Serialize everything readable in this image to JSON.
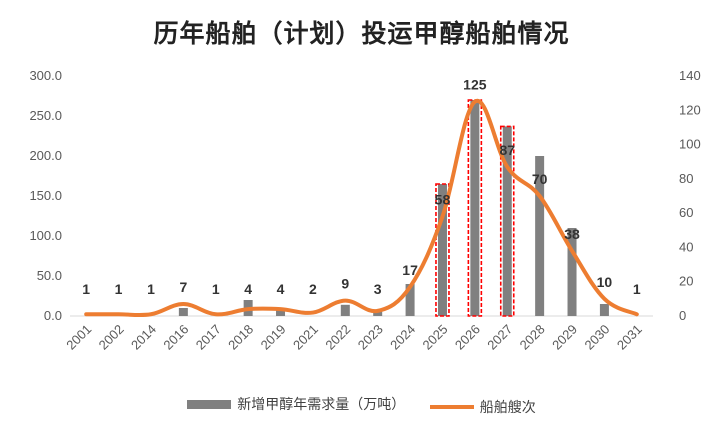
{
  "chart_data": {
    "type": "bar+line",
    "title": "历年船舶（计划）投运甲醇船舶情况",
    "categories": [
      "2001",
      "2002",
      "2014",
      "2016",
      "2017",
      "2018",
      "2019",
      "2021",
      "2022",
      "2023",
      "2024",
      "2025",
      "2026",
      "2027",
      "2028",
      "2029",
      "2030",
      "2031"
    ],
    "series": [
      {
        "name": "新增甲醇年需求量（万吨）",
        "type": "bar",
        "axis": "left",
        "color": "#808080",
        "values": [
          0,
          0,
          0,
          10,
          0,
          20,
          8,
          0,
          14,
          6,
          40,
          165,
          270,
          237,
          200,
          110,
          15,
          0
        ],
        "highlighted": [
          false,
          false,
          false,
          false,
          false,
          false,
          false,
          false,
          false,
          false,
          false,
          true,
          true,
          true,
          false,
          false,
          false,
          false
        ]
      },
      {
        "name": "船舶艘次",
        "type": "line",
        "axis": "right",
        "color": "#ED7D31",
        "values": [
          1,
          1,
          1,
          7,
          1,
          4,
          4,
          2,
          9,
          3,
          17,
          58,
          125,
          87,
          70,
          38,
          10,
          1
        ],
        "labels": [
          "1",
          "1",
          "1",
          "7",
          "1",
          "4",
          "4",
          "2",
          "9",
          "3",
          "17",
          "58",
          "125",
          "87",
          "70",
          "38",
          "10",
          "1"
        ]
      }
    ],
    "y_left": {
      "range": [
        0,
        300
      ],
      "ticks": [
        "0.0",
        "50.0",
        "100.0",
        "150.0",
        "200.0",
        "250.0",
        "300.0"
      ]
    },
    "y_right": {
      "range": [
        0,
        140
      ],
      "ticks": [
        "0",
        "20",
        "40",
        "60",
        "80",
        "100",
        "120",
        "140"
      ]
    },
    "grid": false,
    "legend": "bottom",
    "highlight_color": "#FF0000"
  }
}
